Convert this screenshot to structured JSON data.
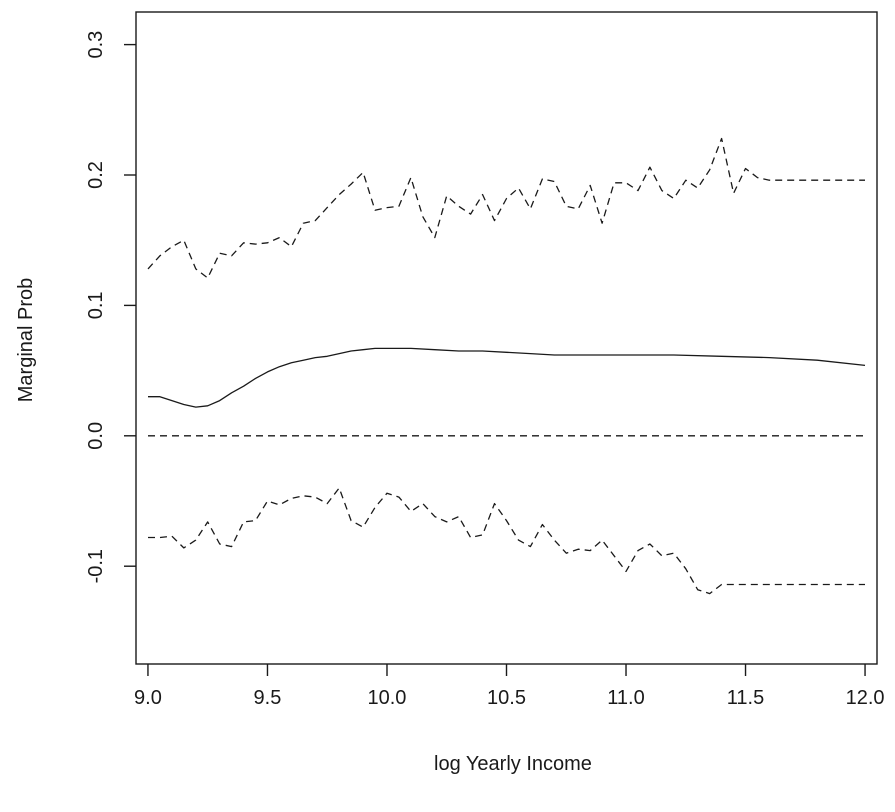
{
  "chart_data": {
    "type": "line",
    "title": "",
    "xlabel": "log Yearly Income",
    "ylabel": "Marginal Prob",
    "xlim": [
      8.95,
      12.05
    ],
    "ylim": [
      -0.175,
      0.325
    ],
    "x_ticks": [
      9.0,
      9.5,
      10.0,
      10.5,
      11.0,
      11.5,
      12.0
    ],
    "x_tick_labels": [
      "9.0",
      "9.5",
      "10.0",
      "10.5",
      "11.0",
      "11.5",
      "12.0"
    ],
    "y_ticks": [
      -0.1,
      0.0,
      0.1,
      0.2,
      0.3
    ],
    "y_tick_labels": [
      "-0.1",
      "0.0",
      "0.1",
      "0.2",
      "0.3"
    ],
    "grid": false,
    "legend": "none",
    "series": [
      {
        "style": "solid",
        "color": "#1a1a1a",
        "x": [
          9.0,
          9.05,
          9.1,
          9.15,
          9.2,
          9.25,
          9.3,
          9.35,
          9.4,
          9.45,
          9.5,
          9.55,
          9.6,
          9.65,
          9.7,
          9.75,
          9.8,
          9.85,
          9.9,
          9.95,
          10.0,
          10.1,
          10.2,
          10.3,
          10.4,
          10.5,
          10.6,
          10.7,
          10.8,
          10.9,
          11.0,
          11.2,
          11.4,
          11.6,
          11.8,
          12.0
        ],
        "y": [
          0.03,
          0.03,
          0.027,
          0.024,
          0.022,
          0.023,
          0.027,
          0.033,
          0.038,
          0.044,
          0.049,
          0.053,
          0.056,
          0.058,
          0.06,
          0.061,
          0.063,
          0.065,
          0.066,
          0.067,
          0.067,
          0.067,
          0.066,
          0.065,
          0.065,
          0.064,
          0.063,
          0.062,
          0.062,
          0.062,
          0.062,
          0.062,
          0.061,
          0.06,
          0.058,
          0.054
        ]
      },
      {
        "style": "dashed",
        "color": "#1a1a1a",
        "x": [
          9.0,
          9.05,
          9.1,
          9.15,
          9.2,
          9.25,
          9.3,
          9.35,
          9.4,
          9.45,
          9.5,
          9.55,
          9.6,
          9.65,
          9.7,
          9.75,
          9.8,
          9.85,
          9.9,
          9.95,
          10.0,
          10.05,
          10.1,
          10.15,
          10.2,
          10.25,
          10.3,
          10.35,
          10.4,
          10.45,
          10.5,
          10.55,
          10.6,
          10.65,
          10.7,
          10.75,
          10.8,
          10.85,
          10.9,
          10.95,
          11.0,
          11.05,
          11.1,
          11.15,
          11.2,
          11.25,
          11.3,
          11.35,
          11.4,
          11.45,
          11.5,
          11.55,
          11.6,
          11.65,
          11.7,
          11.75,
          11.8,
          11.85,
          11.9,
          11.95,
          12.0
        ],
        "y": [
          0.128,
          0.138,
          0.145,
          0.15,
          0.128,
          0.121,
          0.14,
          0.138,
          0.148,
          0.147,
          0.148,
          0.152,
          0.145,
          0.163,
          0.165,
          0.175,
          0.185,
          0.193,
          0.202,
          0.173,
          0.175,
          0.176,
          0.198,
          0.168,
          0.152,
          0.184,
          0.176,
          0.17,
          0.185,
          0.165,
          0.182,
          0.19,
          0.174,
          0.197,
          0.195,
          0.176,
          0.174,
          0.192,
          0.163,
          0.194,
          0.194,
          0.188,
          0.206,
          0.188,
          0.182,
          0.196,
          0.19,
          0.204,
          0.228,
          0.186,
          0.205,
          0.198,
          0.196,
          0.196,
          0.196,
          0.196,
          0.196,
          0.196,
          0.196,
          0.196,
          0.196
        ]
      },
      {
        "style": "dashed",
        "color": "#1a1a1a",
        "x": [
          9.0,
          9.05,
          9.1,
          9.15,
          9.2,
          9.25,
          9.3,
          9.35,
          9.4,
          9.45,
          9.5,
          9.55,
          9.6,
          9.65,
          9.7,
          9.75,
          9.8,
          9.85,
          9.9,
          9.95,
          10.0,
          10.05,
          10.1,
          10.15,
          10.2,
          10.25,
          10.3,
          10.35,
          10.4,
          10.45,
          10.5,
          10.55,
          10.6,
          10.65,
          10.7,
          10.75,
          10.8,
          10.85,
          10.9,
          10.95,
          11.0,
          11.05,
          11.1,
          11.15,
          11.2,
          11.25,
          11.3,
          11.35,
          11.4,
          11.45,
          11.5,
          11.55,
          11.6,
          11.65,
          11.7,
          11.75,
          11.8,
          11.85,
          11.9,
          11.95,
          12.0
        ],
        "y": [
          -0.078,
          -0.078,
          -0.077,
          -0.086,
          -0.08,
          -0.066,
          -0.083,
          -0.085,
          -0.066,
          -0.065,
          -0.05,
          -0.053,
          -0.048,
          -0.046,
          -0.047,
          -0.052,
          -0.04,
          -0.065,
          -0.07,
          -0.055,
          -0.044,
          -0.047,
          -0.058,
          -0.052,
          -0.062,
          -0.066,
          -0.062,
          -0.078,
          -0.076,
          -0.052,
          -0.065,
          -0.08,
          -0.085,
          -0.068,
          -0.08,
          -0.09,
          -0.087,
          -0.088,
          -0.08,
          -0.092,
          -0.104,
          -0.088,
          -0.083,
          -0.092,
          -0.09,
          -0.102,
          -0.118,
          -0.121,
          -0.114,
          -0.114,
          -0.114,
          -0.114,
          -0.114,
          -0.114,
          -0.114,
          -0.114,
          -0.114,
          -0.114,
          -0.114,
          -0.114,
          -0.114
        ]
      },
      {
        "style": "dashed",
        "color": "#1a1a1a",
        "x": [
          9.0,
          12.0
        ],
        "y": [
          0.0,
          0.0
        ]
      }
    ]
  }
}
